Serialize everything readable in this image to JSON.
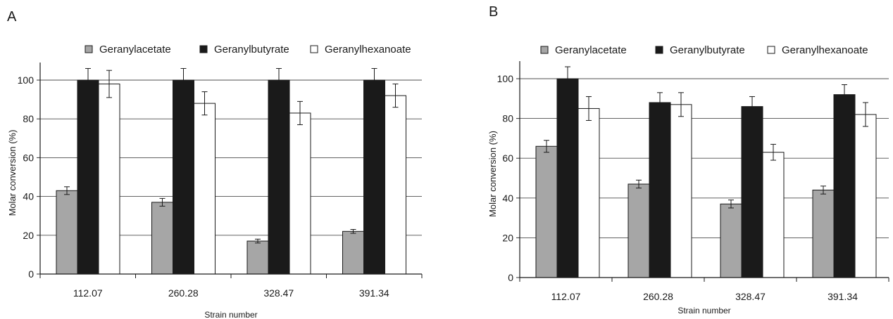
{
  "chart_data": [
    {
      "panel_label": "A",
      "type": "bar",
      "categories": [
        "112.07",
        "260.28",
        "328.47",
        "391.34"
      ],
      "series": [
        {
          "name": "Geranylacetate",
          "color": "#a6a6a6",
          "values": [
            43,
            37,
            17,
            22
          ],
          "errors": [
            2,
            2,
            1,
            1
          ]
        },
        {
          "name": "Geranylbutyrate",
          "color": "#1a1a1a",
          "values": [
            100,
            100,
            100,
            100
          ],
          "errors": [
            6,
            6,
            6,
            6
          ]
        },
        {
          "name": "Geranylhexanoate",
          "color": "#ffffff",
          "values": [
            98,
            88,
            83,
            92
          ],
          "errors": [
            7,
            6,
            6,
            6
          ]
        }
      ],
      "xlabel": "Strain number",
      "ylabel": "Molar conversion (%)",
      "ylim": [
        0,
        100
      ],
      "yticks": [
        0,
        20,
        40,
        60,
        80,
        100
      ],
      "grid": "horizontal",
      "legend": "top"
    },
    {
      "panel_label": "B",
      "type": "bar",
      "categories": [
        "112.07",
        "260.28",
        "328.47",
        "391.34"
      ],
      "series": [
        {
          "name": "Geranylacetate",
          "color": "#a6a6a6",
          "values": [
            66,
            47,
            37,
            44
          ],
          "errors": [
            3,
            2,
            2,
            2
          ]
        },
        {
          "name": "Geranylbutyrate",
          "color": "#1a1a1a",
          "values": [
            100,
            88,
            86,
            92
          ],
          "errors": [
            6,
            5,
            5,
            5
          ]
        },
        {
          "name": "Geranylhexanoate",
          "color": "#ffffff",
          "values": [
            85,
            87,
            63,
            82
          ],
          "errors": [
            6,
            6,
            4,
            6
          ]
        }
      ],
      "xlabel": "Strain number",
      "ylabel": "Molar conversion (%)",
      "ylim": [
        0,
        100
      ],
      "yticks": [
        0,
        20,
        40,
        60,
        80,
        100
      ],
      "grid": "horizontal",
      "legend": "top"
    }
  ]
}
